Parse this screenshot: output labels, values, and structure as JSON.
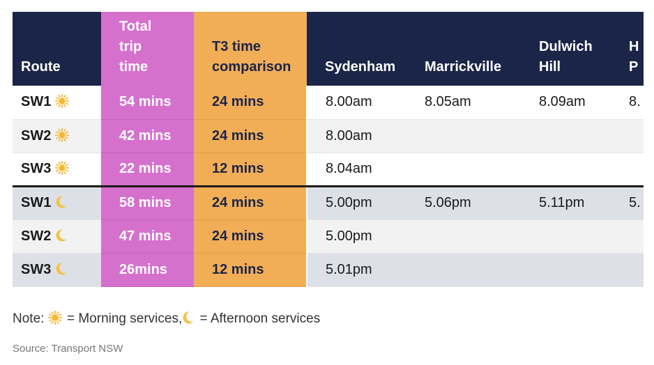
{
  "chart_data": {
    "type": "table",
    "columns": [
      {
        "key": "route",
        "label_lines": [
          "Route"
        ]
      },
      {
        "key": "total",
        "label_lines": [
          "Total",
          "trip",
          "time"
        ]
      },
      {
        "key": "t3",
        "label_lines": [
          "T3 time",
          "comparison"
        ]
      },
      {
        "key": "syd",
        "label_lines": [
          "Sydenham"
        ]
      },
      {
        "key": "mar",
        "label_lines": [
          "Marrickville"
        ]
      },
      {
        "key": "dul",
        "label_lines": [
          "Dulwich",
          "Hill"
        ]
      },
      {
        "key": "hur",
        "label_lines": [
          "H",
          "P"
        ]
      }
    ],
    "rows": [
      {
        "route": "SW1",
        "period": "morning",
        "total": "54 mins",
        "t3": "24 mins",
        "syd": "8.00am",
        "mar": "8.05am",
        "dul": "8.09am",
        "hur": "8."
      },
      {
        "route": "SW2",
        "period": "morning",
        "total": "42 mins",
        "t3": "24 mins",
        "syd": "8.00am",
        "mar": "",
        "dul": "",
        "hur": ""
      },
      {
        "route": "SW3",
        "period": "morning",
        "total": "22 mins",
        "t3": "12 mins",
        "syd": "8.04am",
        "mar": "",
        "dul": "",
        "hur": ""
      },
      {
        "route": "SW1",
        "period": "afternoon",
        "total": "58 mins",
        "t3": "24 mins",
        "syd": "5.00pm",
        "mar": "5.06pm",
        "dul": "5.11pm",
        "hur": "5."
      },
      {
        "route": "SW2",
        "period": "afternoon",
        "total": "47 mins",
        "t3": "24 mins",
        "syd": "5.00pm",
        "mar": "",
        "dul": "",
        "hur": ""
      },
      {
        "route": "SW3",
        "period": "afternoon",
        "total": "26mins",
        "t3": "12 mins",
        "syd": "5.01pm",
        "mar": "",
        "dul": "",
        "hur": ""
      }
    ]
  },
  "note": {
    "prefix": "Note: ",
    "morning_text": " = Morning services,",
    "afternoon_text": " = Afternoon services"
  },
  "source": "Source: Transport NSW",
  "icons": {
    "morning": "sun-icon",
    "afternoon": "moon-icon"
  },
  "colors": {
    "header": "#1b2547",
    "total_column": "#d670cd",
    "t3_column": "#f2ad57",
    "sun": "#f7b731",
    "moon": "#f5c242"
  }
}
